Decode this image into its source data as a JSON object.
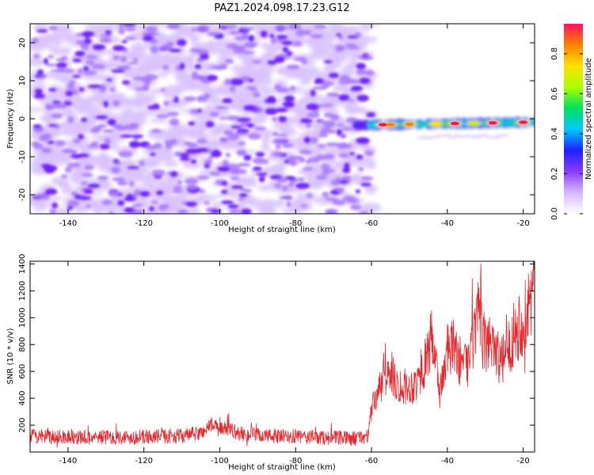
{
  "title": "PAZ1.2024.098.17.23.G12",
  "chart_data": [
    {
      "type": "heatmap",
      "xlabel": "Height of straight line (km)",
      "ylabel": "Frequency (Hz)",
      "xlim": [
        -150,
        -17
      ],
      "ylim": [
        -25,
        25
      ],
      "xticks": [
        -140,
        -120,
        -100,
        -80,
        -60,
        -40,
        -20
      ],
      "yticks": [
        -20,
        -10,
        0,
        10,
        20
      ],
      "colorbar": {
        "label": "Normalized spectral amplitude",
        "range": [
          0,
          0.95
        ],
        "ticks": [
          0.0,
          0.2,
          0.4,
          0.6,
          0.8
        ],
        "colormap": [
          "#ffffff",
          "#d7b8ff",
          "#8a3cff",
          "#2020ff",
          "#00c8ff",
          "#00e060",
          "#aaff00",
          "#ffe000",
          "#ff8000",
          "#ff1060"
        ]
      },
      "noise_region": {
        "x": [
          -149,
          -60
        ],
        "freq": [
          -25,
          25
        ],
        "amplitude": 0.15
      },
      "signal_band": {
        "x": [
          -64,
          -18,
          -17
        ],
        "freq": [
          -1.7,
          -0.9,
          -0.8
        ],
        "peaks": [
          {
            "x": -57,
            "freq": -1.6,
            "amplitude": 0.9
          },
          {
            "x": -55,
            "freq": -1.6,
            "amplitude": 0.85
          },
          {
            "x": -50,
            "freq": -1.5,
            "amplitude": 0.82
          },
          {
            "x": -43,
            "freq": -1.3,
            "amplitude": 0.75
          },
          {
            "x": -38,
            "freq": -1.1,
            "amplitude": 0.95
          },
          {
            "x": -33,
            "freq": -1.0,
            "amplitude": 0.6
          },
          {
            "x": -28,
            "freq": -1.0,
            "amplitude": 0.9
          },
          {
            "x": -20,
            "freq": -0.9,
            "amplitude": 0.95
          }
        ]
      },
      "secondary_band": {
        "x": [
          -47,
          -25
        ],
        "freq": [
          -5.2,
          -4.2
        ],
        "amplitude": 0.1
      }
    },
    {
      "type": "line",
      "xlabel": "Height of straight line (km)",
      "ylabel": "SNR (10 * v/v)",
      "xlim": [
        -150,
        -17
      ],
      "ylim": [
        0,
        1420
      ],
      "xticks": [
        -140,
        -120,
        -100,
        -80,
        -60,
        -40,
        -20
      ],
      "yticks": [
        200,
        400,
        600,
        800,
        1000,
        1200,
        1400
      ],
      "series": [
        {
          "color": "#e8252a",
          "x": [
            -150,
            -145,
            -140,
            -135,
            -130,
            -125,
            -120,
            -115,
            -110,
            -105,
            -102,
            -100,
            -98,
            -95,
            -90,
            -85,
            -80,
            -75,
            -70,
            -65,
            -61,
            -60,
            -59,
            -57,
            -55,
            -53,
            -50,
            -48,
            -46,
            -44,
            -42,
            -40,
            -38,
            -36,
            -34,
            -32,
            -30,
            -28,
            -26,
            -24,
            -22,
            -20,
            -18,
            -17
          ],
          "values": [
            120,
            110,
            115,
            108,
            112,
            110,
            112,
            118,
            120,
            140,
            210,
            160,
            185,
            135,
            125,
            115,
            112,
            110,
            105,
            100,
            115,
            310,
            400,
            520,
            600,
            500,
            480,
            520,
            650,
            850,
            440,
            750,
            780,
            620,
            700,
            1000,
            780,
            860,
            650,
            760,
            930,
            960,
            1150,
            1310
          ]
        }
      ]
    }
  ]
}
